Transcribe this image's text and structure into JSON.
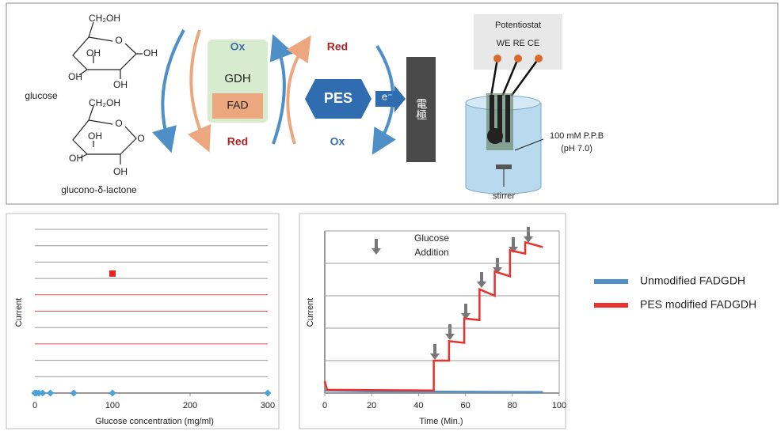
{
  "diagram": {
    "glucose": {
      "name": "glucose",
      "atoms": [
        "CH₂OH",
        "O",
        "OH",
        "OH",
        "OH",
        "OH"
      ]
    },
    "lactone": {
      "name": "glucono-δ-lactone",
      "atoms": [
        "CH₂OH",
        "O",
        "O",
        "OH",
        "OH",
        "OH"
      ]
    },
    "enzyme": {
      "ox": "Ox",
      "red": "Red",
      "gdh": "GDH",
      "fad": "FAD"
    },
    "mediator": {
      "red": "Red",
      "ox": "Ox",
      "pes": "PES",
      "electron": "e⁻",
      "electrode": "電極"
    },
    "cell": {
      "potentiostat": "Potentiostat",
      "electrodes": "WE RE CE",
      "buffer": "100 mM P.P.B",
      "ph": "(pH 7.0)",
      "stirrer": "stirrer"
    }
  },
  "chart_data": [
    {
      "type": "scatter",
      "xlabel": "Glucose concentration (mg/ml)",
      "ylabel": "Current",
      "x": [
        0,
        2,
        5,
        10,
        20,
        50,
        100,
        300
      ],
      "series": [
        {
          "color": "#4aa3d8",
          "marker": "diamond",
          "values": [
            0,
            0,
            0,
            0,
            0,
            0,
            0,
            0
          ]
        },
        {
          "color": "#e8231e",
          "marker": "square",
          "values": [
            null,
            null,
            null,
            null,
            null,
            null,
            7.3,
            null
          ]
        }
      ],
      "xlim": [
        0,
        300
      ],
      "xticks": [
        0,
        100,
        200,
        300
      ],
      "ylim": [
        0,
        10
      ],
      "grid": true
    },
    {
      "type": "line",
      "xlabel": "Time (Min.)",
      "ylabel": "Current",
      "annotation": [
        "Glucose",
        "Addition"
      ],
      "series": [
        {
          "name": "Unmodified FADGDH",
          "color": "#4d8fc6",
          "x": [
            0,
            24,
            25,
            93
          ],
          "values": [
            0.08,
            0.05,
            0.05,
            0.03
          ]
        },
        {
          "name": "PES modified FADGDH",
          "color": "#e8322d",
          "x": [
            0,
            1,
            46.5,
            46.5,
            53,
            53,
            59.5,
            59.5,
            66,
            66,
            72.5,
            72.5,
            79,
            79,
            85.5,
            85.5,
            93
          ],
          "values": [
            0.37,
            0.1,
            0.08,
            1.0,
            1.0,
            1.6,
            1.55,
            2.3,
            2.25,
            3.2,
            3.0,
            3.75,
            3.6,
            4.4,
            4.3,
            4.65,
            4.5
          ]
        }
      ],
      "xlim": [
        0,
        100
      ],
      "xticks": [
        0,
        20,
        40,
        60,
        80,
        100
      ],
      "ylim": [
        0,
        5
      ],
      "grid": true,
      "legend": "right"
    }
  ]
}
